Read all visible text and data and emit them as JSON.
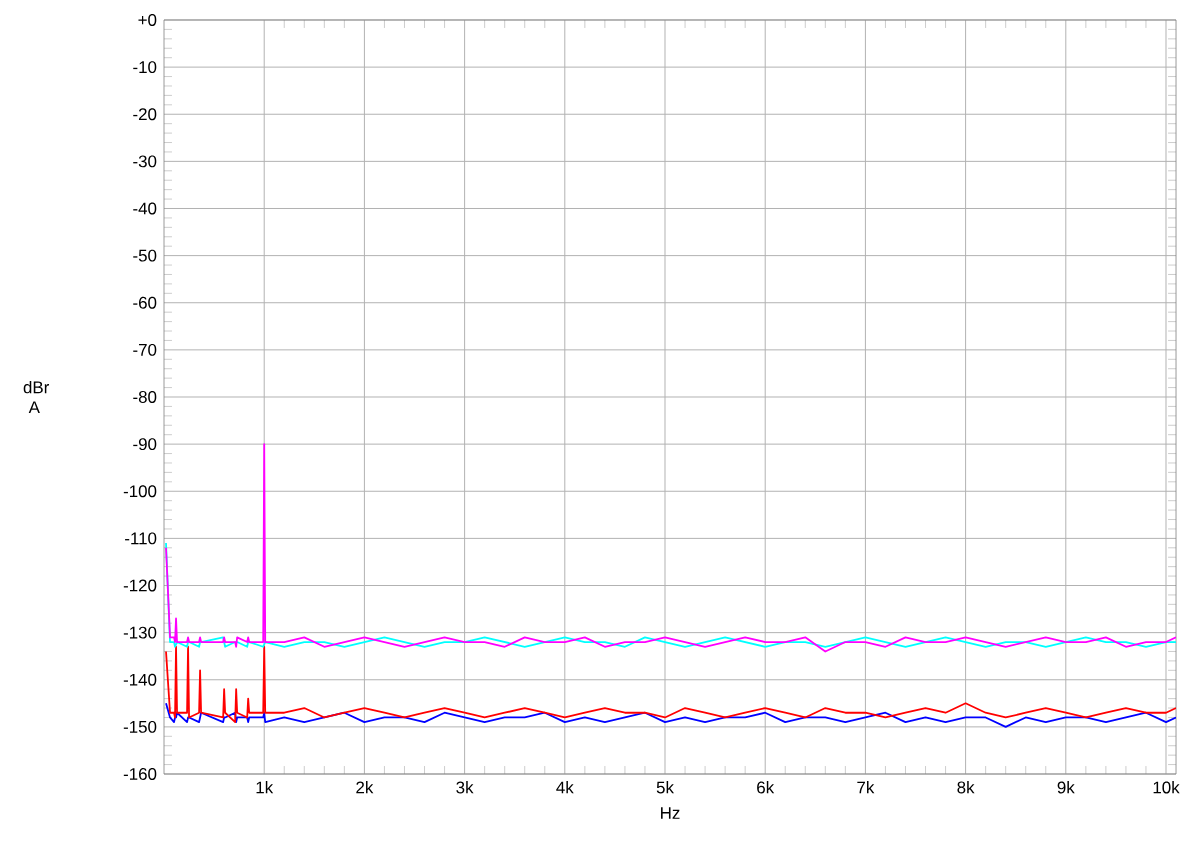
{
  "chart_data": {
    "type": "line",
    "xlabel": "Hz",
    "ylabel": "dBr A",
    "x": [
      20,
      60,
      100,
      110,
      120,
      130,
      230,
      240,
      250,
      350,
      360,
      370,
      590,
      600,
      610,
      710,
      720,
      730,
      830,
      840,
      850,
      990,
      1000,
      1010,
      1200,
      1400,
      1600,
      1800,
      2000,
      2200,
      2400,
      2600,
      2800,
      3000,
      3200,
      3400,
      3600,
      3800,
      4000,
      4200,
      4400,
      4600,
      4800,
      5000,
      5200,
      5400,
      5600,
      5800,
      6000,
      6200,
      6400,
      6600,
      6800,
      7000,
      7200,
      7400,
      7600,
      7800,
      8000,
      8200,
      8400,
      8600,
      8800,
      9000,
      9200,
      9400,
      9600,
      9800,
      10000,
      10100
    ],
    "series": [
      {
        "color": "#0000ff",
        "values": [
          -145,
          -148,
          -149,
          -148,
          -148,
          -147,
          -149,
          -148,
          -148,
          -149,
          -148,
          -147,
          -149,
          -148,
          -148,
          -147,
          -149,
          -148,
          -148,
          -149,
          -148,
          -148,
          -147,
          -149,
          -148,
          -149,
          -148,
          -147,
          -149,
          -148,
          -148,
          -149,
          -147,
          -148,
          -149,
          -148,
          -148,
          -147,
          -149,
          -148,
          -149,
          -148,
          -147,
          -149,
          -148,
          -149,
          -148,
          -148,
          -147,
          -149,
          -148,
          -148,
          -149,
          -148,
          -147,
          -149,
          -148,
          -149,
          -148,
          -148,
          -150,
          -148,
          -149,
          -148,
          -148,
          -149,
          -148,
          -147,
          -149,
          -148
        ]
      },
      {
        "color": "#ff0000",
        "values": [
          -134,
          -147,
          -147,
          -148,
          -133,
          -147,
          -147,
          -133,
          -148,
          -147,
          -138,
          -147,
          -148,
          -142,
          -147,
          -149,
          -142,
          -147,
          -148,
          -144,
          -147,
          -147,
          -133,
          -147,
          -147,
          -146,
          -148,
          -147,
          -146,
          -147,
          -148,
          -147,
          -146,
          -147,
          -148,
          -147,
          -146,
          -147,
          -148,
          -147,
          -146,
          -147,
          -147,
          -148,
          -146,
          -147,
          -148,
          -147,
          -146,
          -147,
          -148,
          -146,
          -147,
          -147,
          -148,
          -147,
          -146,
          -147,
          -145,
          -147,
          -148,
          -147,
          -146,
          -147,
          -148,
          -147,
          -146,
          -147,
          -147,
          -146
        ]
      },
      {
        "color": "#00ffff",
        "values": [
          -111,
          -132,
          -132,
          -133,
          null,
          -132,
          -133,
          -132,
          -132,
          -133,
          -132,
          -132,
          -131,
          -132,
          -133,
          -132,
          -132,
          -132,
          -133,
          -132,
          -132,
          -133,
          null,
          -132,
          -133,
          -132,
          -132,
          -133,
          -132,
          -131,
          -132,
          -133,
          -132,
          -132,
          -131,
          -132,
          -133,
          -132,
          -131,
          -132,
          -132,
          -133,
          -131,
          -132,
          -133,
          -132,
          -131,
          -132,
          -133,
          -132,
          -132,
          -133,
          -132,
          -131,
          -132,
          -133,
          -132,
          -131,
          -132,
          -133,
          -132,
          -132,
          -133,
          -132,
          -131,
          -132,
          -132,
          -133,
          -132,
          -132
        ]
      },
      {
        "color": "#ff00ff",
        "values": [
          -112,
          -131,
          -131,
          -132,
          -127,
          -132,
          -132,
          -131,
          -132,
          -132,
          -131,
          -132,
          -132,
          -131,
          -132,
          -132,
          -133,
          -131,
          -132,
          -131,
          -132,
          -132,
          -90,
          -132,
          -132,
          -131,
          -133,
          -132,
          -131,
          -132,
          -133,
          -132,
          -131,
          -132,
          -132,
          -133,
          -131,
          -132,
          -132,
          -131,
          -133,
          -132,
          -132,
          -131,
          -132,
          -133,
          -132,
          -131,
          -132,
          -132,
          -131,
          -134,
          -132,
          -132,
          -133,
          -131,
          -132,
          -132,
          -131,
          -132,
          -133,
          -132,
          -131,
          -132,
          -132,
          -131,
          -133,
          -132,
          -132,
          -131
        ]
      }
    ],
    "xlim": [
      0,
      10100
    ],
    "xticks": [
      {
        "value": 1000,
        "label": "1k"
      },
      {
        "value": 2000,
        "label": "2k"
      },
      {
        "value": 3000,
        "label": "3k"
      },
      {
        "value": 4000,
        "label": "4k"
      },
      {
        "value": 5000,
        "label": "5k"
      },
      {
        "value": 6000,
        "label": "6k"
      },
      {
        "value": 7000,
        "label": "7k"
      },
      {
        "value": 8000,
        "label": "8k"
      },
      {
        "value": 9000,
        "label": "9k"
      },
      {
        "value": 10000,
        "label": "10k"
      }
    ],
    "ylim": [
      -160,
      0
    ],
    "yticks": [
      {
        "value": 0,
        "label": "+0"
      },
      -10,
      -20,
      -30,
      -40,
      -50,
      -60,
      -70,
      -80,
      -90,
      -100,
      -110,
      -120,
      -130,
      -140,
      -150,
      -160
    ],
    "grid": true,
    "marker": "none",
    "line_style": "solid"
  }
}
